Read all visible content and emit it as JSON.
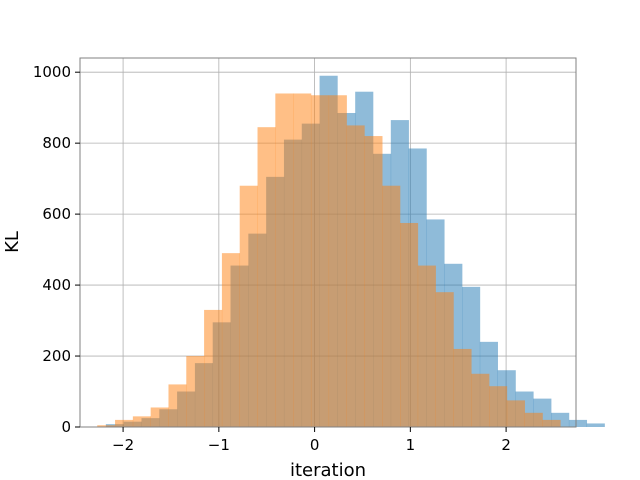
{
  "chart_data": {
    "type": "histogram",
    "xlabel": "iteration",
    "ylabel": "KL",
    "xlim": [
      -2.45,
      2.73
    ],
    "ylim": [
      0,
      1040
    ],
    "grid": true,
    "xticks": [
      -2,
      -1,
      0,
      1,
      2
    ],
    "yticks": [
      0,
      200,
      400,
      600,
      800,
      1000
    ],
    "xtick_labels": [
      "−2",
      "−1",
      "0",
      "1",
      "2"
    ],
    "ytick_labels": [
      "0",
      "200",
      "400",
      "600",
      "800",
      "1000"
    ],
    "series": [
      {
        "color": "#1f77b4",
        "opacity": 0.5,
        "bin_start": -2.18,
        "bin_width": 0.186,
        "counts": [
          8,
          15,
          25,
          50,
          100,
          180,
          295,
          455,
          545,
          705,
          810,
          855,
          990,
          885,
          945,
          770,
          865,
          785,
          585,
          460,
          395,
          240,
          160,
          100,
          80,
          40,
          20,
          10
        ]
      },
      {
        "color": "#ff7f0e",
        "opacity": 0.5,
        "bin_start": -2.27,
        "bin_width": 0.186,
        "counts": [
          5,
          20,
          30,
          55,
          120,
          200,
          330,
          490,
          680,
          845,
          940,
          940,
          935,
          935,
          850,
          820,
          680,
          575,
          455,
          380,
          220,
          150,
          115,
          75,
          40,
          20
        ]
      }
    ]
  }
}
